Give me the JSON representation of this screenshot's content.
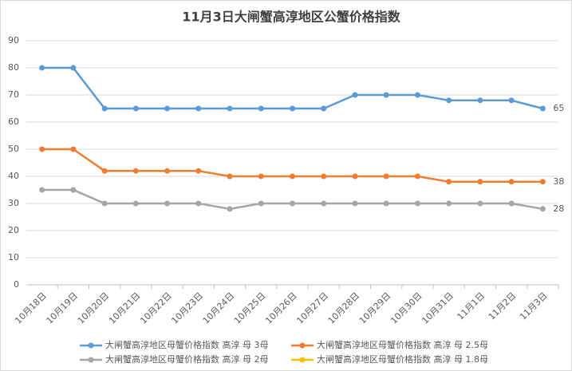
{
  "chart_data": {
    "type": "line",
    "title": "11月3日大闸蟹高淳地区公蟹价格指数",
    "categories": [
      "10月18日",
      "10月19日",
      "10月20日",
      "10月21日",
      "10月22日",
      "10月23日",
      "10月24日",
      "10月25日",
      "10月26日",
      "10月27日",
      "10月28日",
      "10月29日",
      "10月30日",
      "10月31日",
      "11月1日",
      "11月2日",
      "11月3日"
    ],
    "series": [
      {
        "name": "大闸蟹高淳地区母蟹价格指数 高淳 母 3母",
        "color": "#5b9bd5",
        "values": [
          80,
          80,
          65,
          65,
          65,
          65,
          65,
          65,
          65,
          65,
          70,
          70,
          70,
          68,
          68,
          68,
          65
        ]
      },
      {
        "name": "大闸蟹高淳地区母蟹价格指数 高淳 母 2.5母",
        "color": "#ed7d31",
        "values": [
          50,
          50,
          42,
          42,
          42,
          42,
          40,
          40,
          40,
          40,
          40,
          40,
          40,
          38,
          38,
          38,
          38
        ]
      },
      {
        "name": "大闸蟹高淳地区母蟹价格指数 高淳 母 2母",
        "color": "#a5a5a5",
        "values": [
          35,
          35,
          30,
          30,
          30,
          30,
          28,
          30,
          30,
          30,
          30,
          30,
          30,
          30,
          30,
          30,
          28
        ]
      },
      {
        "name": "大闸蟹高淳地区母蟹价格指数 高淳 母 1.8母",
        "color": "#ffc000",
        "values": [
          null,
          null,
          null,
          null,
          null,
          null,
          null,
          null,
          null,
          null,
          null,
          null,
          null,
          null,
          null,
          null,
          null
        ]
      }
    ],
    "ylim": [
      0,
      90
    ],
    "yticks": [
      0,
      10,
      20,
      30,
      40,
      50,
      60,
      70,
      80,
      90
    ],
    "grid": true,
    "legend": "bottom"
  }
}
